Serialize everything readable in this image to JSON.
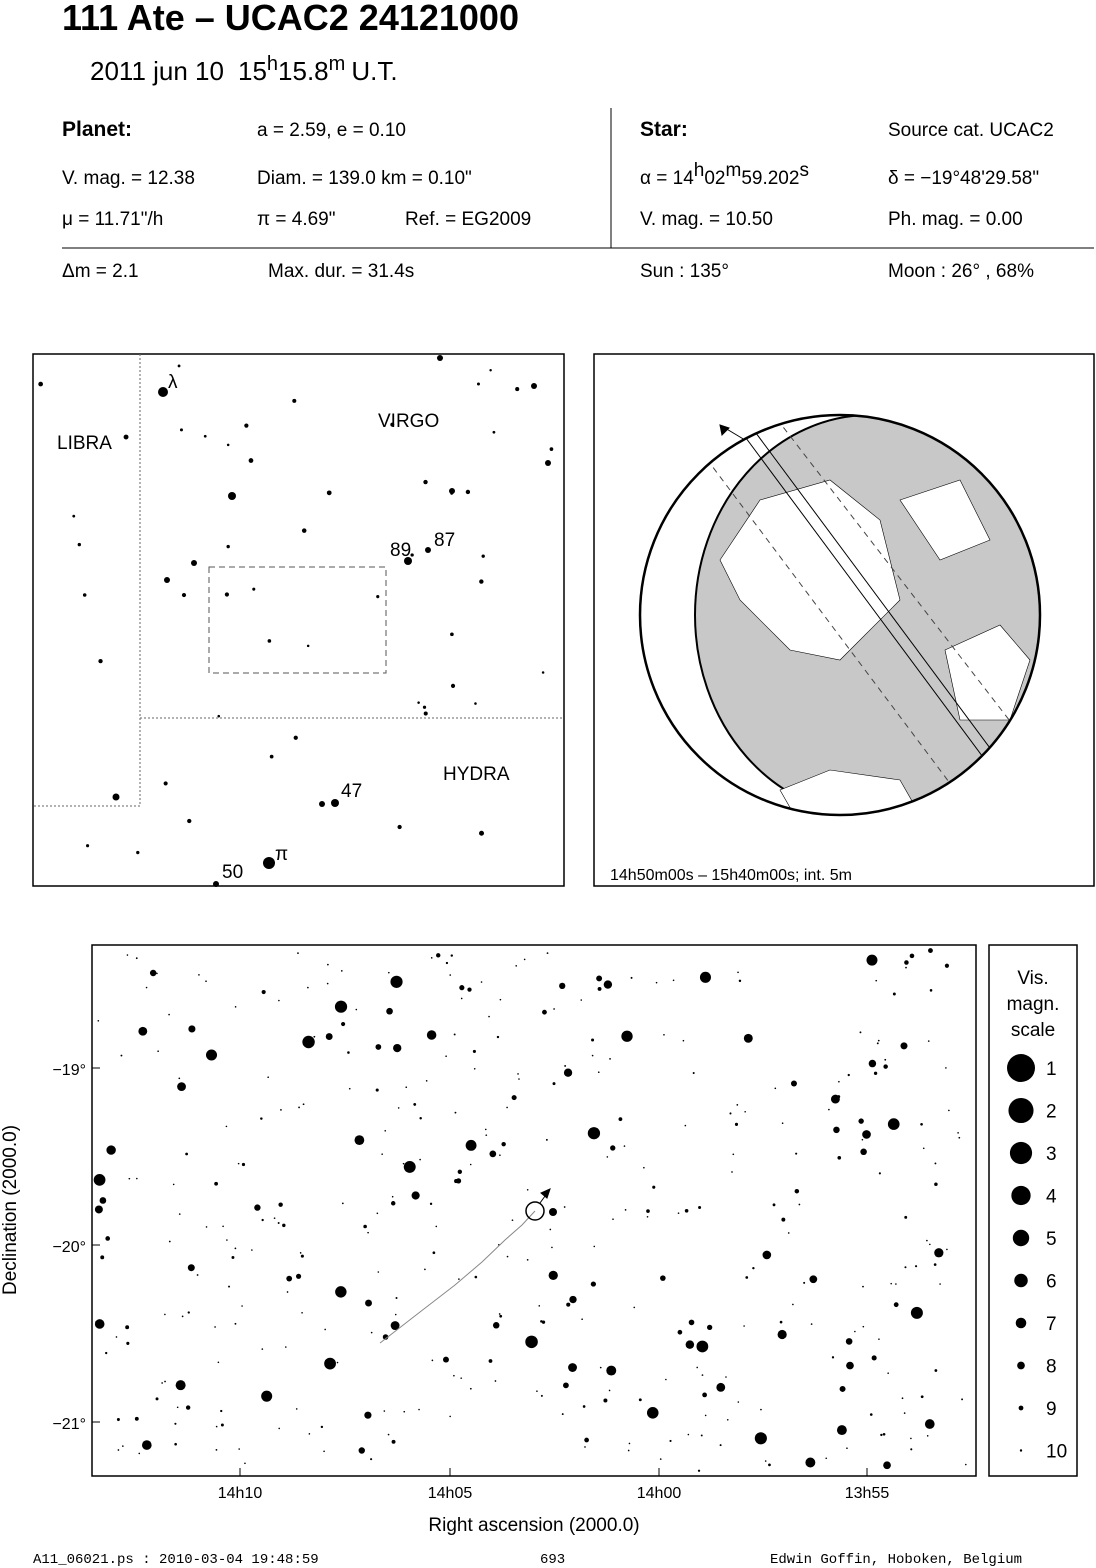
{
  "header": {
    "title": "111 Ate  –  UCAC2 24121000",
    "date": "2011 jun 10",
    "time": [
      "15",
      "h",
      "15.8",
      "m",
      "U.T."
    ]
  },
  "info": {
    "planet": {
      "heading": "Planet:",
      "orbit": "a = 2.59, e = 0.10",
      "vmag": "V. mag. = 12.38",
      "diam": "Diam. = 139.0 km = 0.10\"",
      "mu": "μ =  11.71\"/h",
      "pi": "π =  4.69\"",
      "ref": "Ref. = EG2009"
    },
    "star": {
      "heading": "Star:",
      "source": "Source cat.  UCAC2",
      "alpha": [
        "α = 14",
        "h",
        "02",
        "m",
        "59.202",
        "s"
      ],
      "delta": "δ = −19°48'29.58\"",
      "vmag": "V. mag. = 10.50",
      "phmag": "Ph. mag. =  0.00"
    },
    "event": {
      "dm": "Δm = 2.1",
      "maxdur": "Max. dur. = 31.4s",
      "sun": "Sun : 135°",
      "moon": "Moon :  26° , 68%"
    }
  },
  "finder": {
    "labels": [
      "λ",
      "LIBRA",
      "VIRGO",
      "89",
      "87",
      "47",
      "HYDRA",
      "π",
      "50"
    ]
  },
  "globe": {
    "caption": "14h50m00s – 15h40m00s; int.  5m"
  },
  "starchart": {
    "yticks": [
      "−19°",
      "−20°",
      "−21°"
    ],
    "xticks": [
      "14h10",
      "14h05",
      "14h00",
      "13h55"
    ],
    "ylabel": "Declination (2000.0)",
    "xlabel": "Right ascension (2000.0)"
  },
  "legend": {
    "title": [
      "Vis.",
      "magn.",
      "scale"
    ],
    "values": [
      1,
      2,
      3,
      4,
      5,
      6,
      7,
      8,
      9,
      10
    ]
  },
  "footer": {
    "file": "A11_06021.ps : 2010-03-04 19:48:59",
    "page": "693",
    "author": "Edwin Goffin, Hoboken, Belgium"
  }
}
